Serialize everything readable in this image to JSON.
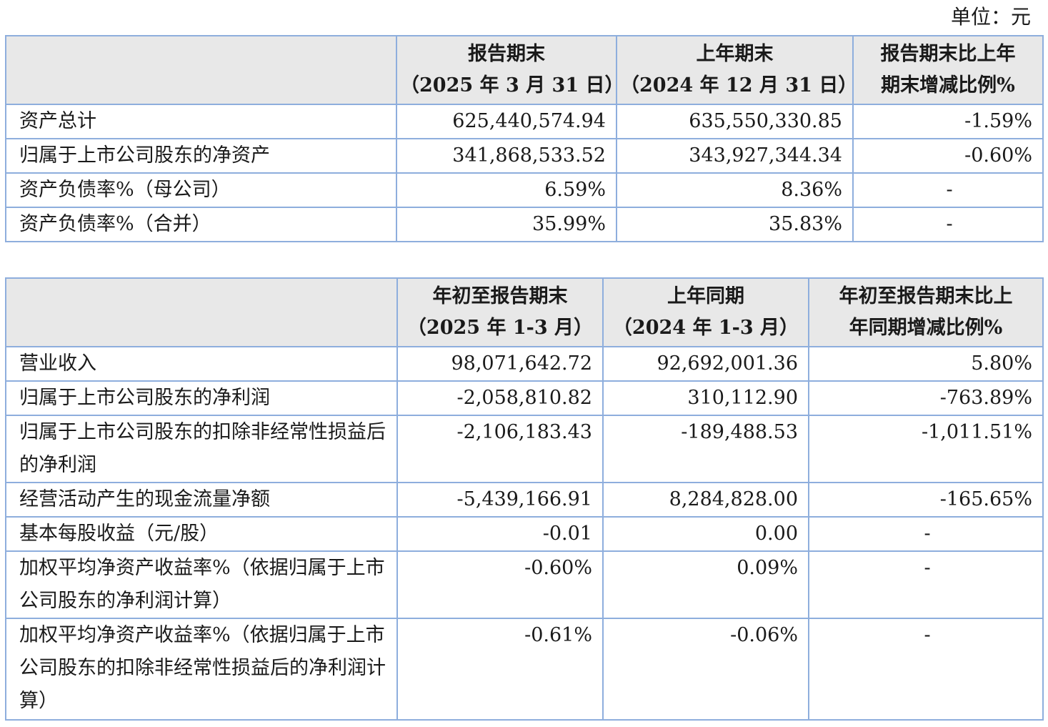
{
  "unit_label": "单位：元",
  "balance_table": {
    "headers": [
      {
        "line1": "",
        "line2": ""
      },
      {
        "line1": "报告期末",
        "line2": "（2025 年 3 月 31 日）"
      },
      {
        "line1": "上年期末",
        "line2": "（2024 年 12 月 31 日）"
      },
      {
        "line1": "报告期末比上年",
        "line2": "期末增减比例%"
      }
    ],
    "rows": [
      {
        "label": "资产总计",
        "current": "625,440,574.94",
        "previous": "635,550,330.85",
        "change": "-1.59%"
      },
      {
        "label": "归属于上市公司股东的净资产",
        "current": "341,868,533.52",
        "previous": "343,927,344.34",
        "change": "-0.60%"
      },
      {
        "label": "资产负债率%（母公司）",
        "current": "6.59%",
        "previous": "8.36%",
        "change": "-"
      },
      {
        "label": "资产负债率%（合并）",
        "current": "35.99%",
        "previous": "35.83%",
        "change": "-"
      }
    ]
  },
  "income_table": {
    "headers": [
      {
        "line1": "",
        "line2": ""
      },
      {
        "line1": "年初至报告期末",
        "line2": "（2025 年 1-3 月）"
      },
      {
        "line1": "上年同期",
        "line2": "（2024 年 1-3 月）"
      },
      {
        "line1": "年初至报告期末比上",
        "line2": "年同期增减比例%"
      }
    ],
    "rows": [
      {
        "label": "营业收入",
        "current": "98,071,642.72",
        "previous": "92,692,001.36",
        "change": "5.80%"
      },
      {
        "label": "归属于上市公司股东的净利润",
        "current": "-2,058,810.82",
        "previous": "310,112.90",
        "change": "-763.89%"
      },
      {
        "label": "归属于上市公司股东的扣除非经常性损益后的净利润",
        "current": "-2,106,183.43",
        "previous": "-189,488.53",
        "change": "-1,011.51%"
      },
      {
        "label": "经营活动产生的现金流量净额",
        "current": "-5,439,166.91",
        "previous": "8,284,828.00",
        "change": "-165.65%"
      },
      {
        "label": "基本每股收益（元/股）",
        "current": "-0.01",
        "previous": "0.00",
        "change": "-"
      },
      {
        "label": "加权平均净资产收益率%（依据归属于上市公司股东的净利润计算）",
        "current": "-0.60%",
        "previous": "0.09%",
        "change": "-"
      },
      {
        "label": "加权平均净资产收益率%（依据归属于上市公司股东的扣除非经常性损益后的净利润计算）",
        "current": "-0.61%",
        "previous": "-0.06%",
        "change": "-"
      }
    ]
  }
}
